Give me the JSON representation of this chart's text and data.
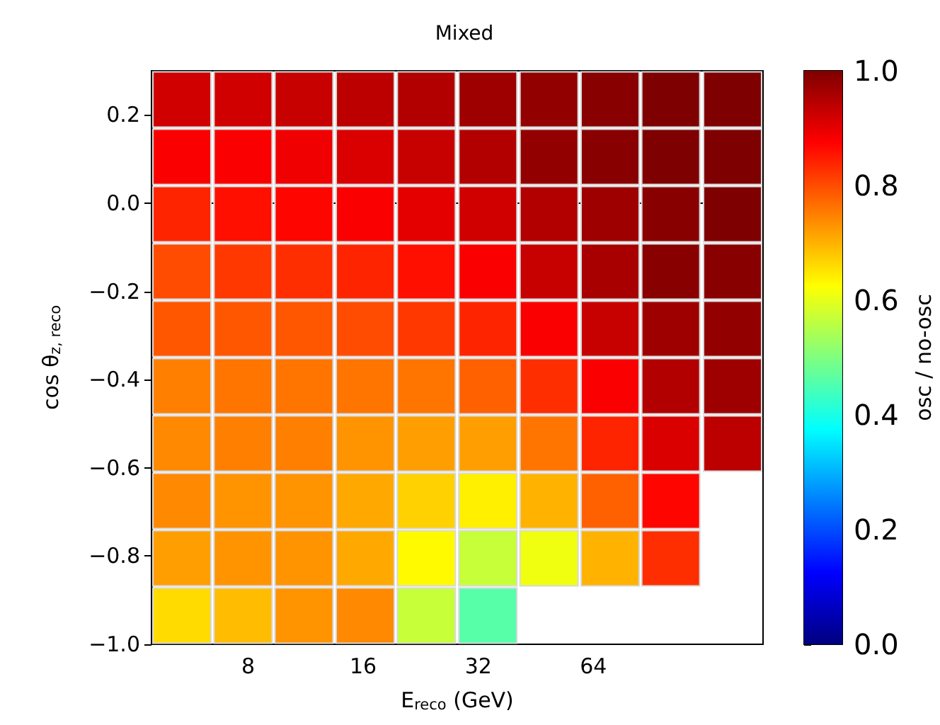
{
  "chart_data": {
    "type": "scatter",
    "title": "Mixed",
    "xlabel": "E$_{reco}$ (GeV)",
    "ylabel": "cos θ$_{z, reco}$",
    "clabel": "osc / no-osc",
    "log": "x",
    "marker": "square",
    "xlim": [
      4.47,
      177.8
    ],
    "xticks": [
      8,
      16,
      32,
      64
    ],
    "ylim": [
      -1,
      0.3
    ],
    "yticks": [
      {
        "value": -1,
        "label": "−1.0"
      },
      {
        "value": -0.8,
        "label": "−0.8"
      },
      {
        "value": -0.6,
        "label": "−0.6"
      },
      {
        "value": -0.4,
        "label": "−0.4"
      },
      {
        "value": -0.2,
        "label": "−0.2"
      },
      {
        "value": 0,
        "label": "0.0"
      },
      0.2
    ],
    "x": [
      5.37,
      7.76,
      11.2,
      16.2,
      23.4,
      33.9,
      49.0,
      70.8,
      102,
      148,
      5.37,
      7.76,
      11.2,
      16.2,
      23.4,
      33.9,
      49.0,
      70.8,
      102,
      148,
      5.37,
      7.76,
      11.2,
      16.2,
      23.4,
      33.9,
      49.0,
      70.8,
      102,
      148,
      5.37,
      7.76,
      11.2,
      16.2,
      23.4,
      33.9,
      49.0,
      70.8,
      102,
      148,
      5.37,
      7.76,
      11.2,
      16.2,
      23.4,
      33.9,
      49.0,
      70.8,
      102,
      148,
      5.37,
      7.76,
      11.2,
      16.2,
      23.4,
      33.9,
      49.0,
      70.8,
      102,
      148,
      5.37,
      7.76,
      11.2,
      16.2,
      23.4,
      33.9,
      49.0,
      70.8,
      102,
      148,
      5.37,
      7.76,
      11.2,
      16.2,
      23.4,
      33.9,
      49.0,
      70.8,
      102,
      5.37,
      7.76,
      11.2,
      16.2,
      23.4,
      33.9,
      49.0,
      70.8,
      102,
      5.37,
      7.76,
      11.2,
      16.2,
      23.4,
      33.9
    ],
    "values": [
      0.235,
      0.235,
      0.235,
      0.235,
      0.235,
      0.235,
      0.235,
      0.235,
      0.235,
      0.235,
      0.105,
      0.105,
      0.105,
      0.105,
      0.105,
      0.105,
      0.105,
      0.105,
      0.105,
      0.105,
      -0.025,
      -0.025,
      -0.025,
      -0.025,
      -0.025,
      -0.025,
      -0.025,
      -0.025,
      -0.025,
      -0.025,
      -0.155,
      -0.155,
      -0.155,
      -0.155,
      -0.155,
      -0.155,
      -0.155,
      -0.155,
      -0.155,
      -0.155,
      -0.285,
      -0.285,
      -0.285,
      -0.285,
      -0.285,
      -0.285,
      -0.285,
      -0.285,
      -0.285,
      -0.285,
      -0.415,
      -0.415,
      -0.415,
      -0.415,
      -0.415,
      -0.415,
      -0.415,
      -0.415,
      -0.415,
      -0.415,
      -0.545,
      -0.545,
      -0.545,
      -0.545,
      -0.545,
      -0.545,
      -0.545,
      -0.545,
      -0.545,
      -0.545,
      -0.675,
      -0.675,
      -0.675,
      -0.675,
      -0.675,
      -0.675,
      -0.675,
      -0.675,
      -0.675,
      -0.805,
      -0.805,
      -0.805,
      -0.805,
      -0.805,
      -0.805,
      -0.805,
      -0.805,
      -0.805,
      -0.935,
      -0.935,
      -0.935,
      -0.935,
      -0.935,
      -0.935
    ],
    "cvalues": [
      0.92,
      0.92,
      0.93,
      0.94,
      0.95,
      0.97,
      0.98,
      0.99,
      1.0,
      1.0,
      0.88,
      0.88,
      0.89,
      0.91,
      0.93,
      0.95,
      0.98,
      0.99,
      1.0,
      1.0,
      0.84,
      0.86,
      0.87,
      0.88,
      0.9,
      0.92,
      0.95,
      0.97,
      0.99,
      1.0,
      0.8,
      0.82,
      0.83,
      0.84,
      0.86,
      0.88,
      0.93,
      0.96,
      0.99,
      0.99,
      0.79,
      0.79,
      0.79,
      0.8,
      0.82,
      0.84,
      0.88,
      0.93,
      0.97,
      0.98,
      0.75,
      0.76,
      0.76,
      0.76,
      0.76,
      0.78,
      0.83,
      0.88,
      0.95,
      0.97,
      0.74,
      0.75,
      0.75,
      0.73,
      0.72,
      0.72,
      0.76,
      0.84,
      0.91,
      0.94,
      0.74,
      0.73,
      0.73,
      0.71,
      0.67,
      0.64,
      0.7,
      0.78,
      0.87,
      0.72,
      0.73,
      0.73,
      0.71,
      0.63,
      0.57,
      0.61,
      0.7,
      0.83,
      0.66,
      0.69,
      0.73,
      0.74,
      0.57,
      0.46
    ],
    "clim": [
      0,
      1
    ],
    "cticks": [
      {
        "value": 0,
        "label": "0.0"
      },
      0.2,
      0.4,
      0.6,
      0.8,
      {
        "value": 1,
        "label": "1.0"
      }
    ]
  }
}
